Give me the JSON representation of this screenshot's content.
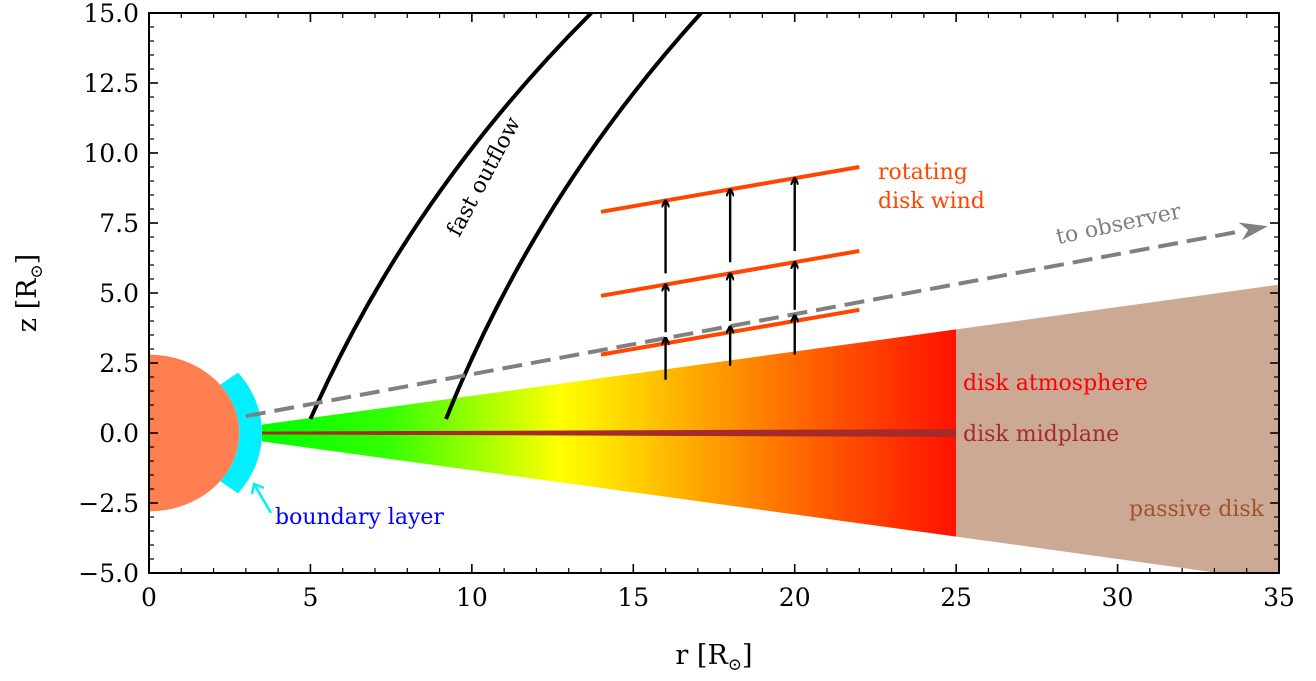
{
  "x_axis": {
    "label": "r [R",
    "label_sub": "⊙",
    "label_close": "]",
    "range": [
      0,
      35
    ],
    "ticks": [
      0,
      5,
      10,
      15,
      20,
      25,
      30,
      35
    ],
    "tick_labels": [
      "0",
      "5",
      "10",
      "15",
      "20",
      "25",
      "30",
      "35"
    ]
  },
  "y_axis": {
    "label": "z [R",
    "label_sub": "⊙",
    "label_close": "]",
    "range": [
      -5.0,
      15.0
    ],
    "ticks": [
      -5.0,
      -2.5,
      0.0,
      2.5,
      5.0,
      7.5,
      10.0,
      12.5,
      15.0
    ],
    "tick_labels": [
      "−5.0",
      "−2.5",
      "0.0",
      "2.5",
      "5.0",
      "7.5",
      "10.0",
      "12.5",
      "15.0"
    ]
  },
  "labels": {
    "fast_outflow": "fast outflow",
    "rotating_line1": "rotating",
    "rotating_line2": "disk wind",
    "to_observer": "to observer",
    "disk_atmosphere": "disk atmosphere",
    "disk_midplane": "disk midplane",
    "boundary_layer": "boundary layer",
    "passive_disk": "passive disk"
  },
  "colors": {
    "star": "#ff7f50",
    "boundary_layer": "#00f0ff",
    "midplane": "#a52a2a",
    "passive_disk": "#cca995",
    "wind": "#ff4500",
    "observer": "#808080",
    "boundary_label": "#0000ff",
    "atmosphere_label": "#ff0000",
    "midplane_label": "#a52a2a",
    "passive_label": "#a0522d"
  },
  "geometry": {
    "star_radius": 2.8,
    "boundary_layer_inner": 2.8,
    "boundary_layer_outer": 3.5,
    "boundary_layer_halfangle_deg": 38,
    "active_disk": {
      "r_inner": 3.5,
      "r_outer": 25,
      "z_inner": 0.3,
      "z_outer": 3.7
    },
    "passive_disk": {
      "r_inner": 25,
      "r_outer": 35,
      "z_inner": 3.7,
      "z_outer": 5.3
    },
    "midplane": {
      "r_start": 3.5,
      "r_end": 25,
      "halfwidth_start": 0.05,
      "halfwidth_end": 0.14
    },
    "outflow_lines": [
      {
        "r0": 5.0,
        "z0": 0.5,
        "r1": 13.7,
        "z1": 15.0
      },
      {
        "r0": 9.2,
        "z0": 0.5,
        "r1": 17.1,
        "z1": 15.0
      }
    ],
    "wind_lines": [
      {
        "r0": 14,
        "z0": 2.8,
        "r1": 22,
        "z1": 4.4
      },
      {
        "r0": 14,
        "z0": 4.9,
        "r1": 22,
        "z1": 6.5
      },
      {
        "r0": 14,
        "z0": 7.9,
        "r1": 22,
        "z1": 9.5
      }
    ],
    "wind_arrows": [
      {
        "r": 16,
        "z0": 1.9,
        "z1": 3.4
      },
      {
        "r": 16,
        "z0": 3.6,
        "z1": 5.3
      },
      {
        "r": 16,
        "z0": 5.7,
        "z1": 8.3
      },
      {
        "r": 18,
        "z0": 2.4,
        "z1": 3.8
      },
      {
        "r": 18,
        "z0": 4.0,
        "z1": 5.7
      },
      {
        "r": 18,
        "z0": 6.1,
        "z1": 8.7
      },
      {
        "r": 20,
        "z0": 2.8,
        "z1": 4.2
      },
      {
        "r": 20,
        "z0": 4.4,
        "z1": 6.1
      },
      {
        "r": 20,
        "z0": 6.5,
        "z1": 9.1
      }
    ],
    "observer_line": {
      "r0": 3.0,
      "z0": 0.6,
      "r1": 33.8,
      "z1": 7.2
    }
  }
}
